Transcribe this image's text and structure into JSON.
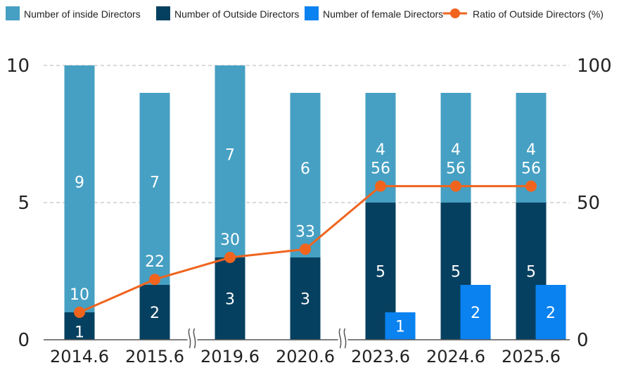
{
  "chart_data": {
    "type": "bar",
    "categories": [
      "2014.6",
      "2015.6",
      "2019.6",
      "2020.6",
      "2023.6",
      "2024.6",
      "2025.6"
    ],
    "axis_breaks_after": [
      "2015.6",
      "2020.6"
    ],
    "series": [
      {
        "name": "Number of inside Directors",
        "type": "bar",
        "stack": "directors",
        "values": [
          9,
          7,
          7,
          6,
          4,
          4,
          4
        ],
        "color": "#46a0c3"
      },
      {
        "name": "Number of Outside Directors",
        "type": "bar",
        "stack": "directors",
        "values": [
          1,
          2,
          3,
          3,
          5,
          5,
          5
        ],
        "color": "#064060"
      },
      {
        "name": "Number of female Directors",
        "type": "bar",
        "values": [
          null,
          null,
          null,
          null,
          1,
          2,
          2
        ],
        "color": "#0a82f0"
      },
      {
        "name": "Ratio of Outside Directors (%)",
        "type": "line",
        "axis": "right",
        "values": [
          10,
          22,
          30,
          33,
          56,
          56,
          56
        ],
        "color": "#f0641e"
      }
    ],
    "y_left": {
      "min": 0,
      "max": 10,
      "ticks": [
        0,
        5,
        10
      ]
    },
    "y_right": {
      "min": 0,
      "max": 100,
      "ticks": [
        0,
        50,
        100
      ]
    },
    "grid": "dashed-horizontal",
    "legend": "top"
  }
}
